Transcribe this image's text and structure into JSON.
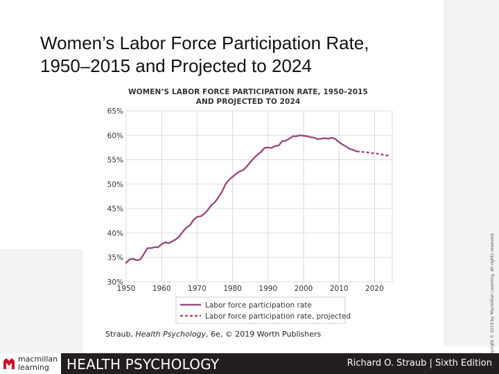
{
  "slide": {
    "title_line1": "Women’s Labor Force Participation Rate,",
    "title_line2": "1950–2015 and Projected to 2024"
  },
  "figure": {
    "title_line1": "WOMEN’S LABOR FORCE PARTICIPATION RATE, 1950–2015",
    "title_line2": "AND PROJECTED TO 2024",
    "credit_prefix": "Straub, ",
    "credit_italic": "Health Psychology",
    "credit_suffix": ", 6e, © 2019 Worth Publishers",
    "copyright": "Copyright © 2019 by Macmillan Learning. All rights reserved."
  },
  "footer": {
    "logo_line1": "macmillan",
    "logo_line2": "learning",
    "book_title": "HEALTH PSYCHOLOGY",
    "author": "Richard O. Straub | Sixth Edition"
  },
  "colors": {
    "series": "#9a4a7e",
    "grid": "#d9d9d9",
    "footer_bar": "#231f20",
    "logo_red": "#c8102e"
  },
  "chart_data": {
    "type": "line",
    "title": "WOMEN’S LABOR FORCE PARTICIPATION RATE, 1950–2015 AND PROJECTED TO 2024",
    "xlabel": "",
    "ylabel": "",
    "xlim": [
      1950,
      2025
    ],
    "ylim": [
      30,
      65
    ],
    "x_ticks": [
      1950,
      1960,
      1970,
      1980,
      1990,
      2000,
      2010,
      2020
    ],
    "x_tick_labels": [
      "1950",
      "1960",
      "1970",
      "1980",
      "1990",
      "2000",
      "2010",
      "2020"
    ],
    "y_ticks": [
      30,
      35,
      40,
      45,
      50,
      55,
      60,
      65
    ],
    "y_tick_labels": [
      "30%",
      "35%",
      "40%",
      "45%",
      "50%",
      "55%",
      "60%",
      "65%"
    ],
    "grid": true,
    "legend_position": "bottom",
    "series": [
      {
        "name": "Labor force participation rate",
        "style": "solid",
        "x": [
          1950,
          1951,
          1952,
          1953,
          1954,
          1955,
          1956,
          1957,
          1958,
          1959,
          1960,
          1961,
          1962,
          1963,
          1964,
          1965,
          1966,
          1967,
          1968,
          1969,
          1970,
          1971,
          1972,
          1973,
          1974,
          1975,
          1976,
          1977,
          1978,
          1979,
          1980,
          1981,
          1982,
          1983,
          1984,
          1985,
          1986,
          1987,
          1988,
          1989,
          1990,
          1991,
          1992,
          1993,
          1994,
          1995,
          1996,
          1997,
          1998,
          1999,
          2000,
          2001,
          2002,
          2003,
          2004,
          2005,
          2006,
          2007,
          2008,
          2009,
          2010,
          2011,
          2012,
          2013,
          2014,
          2015
        ],
        "y": [
          33.9,
          34.6,
          34.7,
          34.4,
          34.6,
          35.7,
          36.9,
          36.9,
          37.1,
          37.1,
          37.7,
          38.1,
          37.9,
          38.3,
          38.7,
          39.3,
          40.3,
          41.1,
          41.6,
          42.7,
          43.3,
          43.4,
          43.9,
          44.7,
          45.7,
          46.3,
          47.3,
          48.4,
          50.0,
          50.9,
          51.5,
          52.1,
          52.6,
          52.9,
          53.6,
          54.5,
          55.3,
          56.0,
          56.6,
          57.4,
          57.5,
          57.4,
          57.8,
          57.9,
          58.8,
          58.9,
          59.3,
          59.8,
          59.8,
          60.0,
          59.9,
          59.8,
          59.6,
          59.5,
          59.2,
          59.3,
          59.4,
          59.3,
          59.5,
          59.2,
          58.6,
          58.1,
          57.7,
          57.2,
          57.0,
          56.7
        ]
      },
      {
        "name": "Labor force participation rate, projected",
        "style": "dashed",
        "x": [
          2015,
          2018,
          2021,
          2024
        ],
        "y": [
          56.7,
          56.5,
          56.2,
          55.8
        ]
      }
    ]
  }
}
